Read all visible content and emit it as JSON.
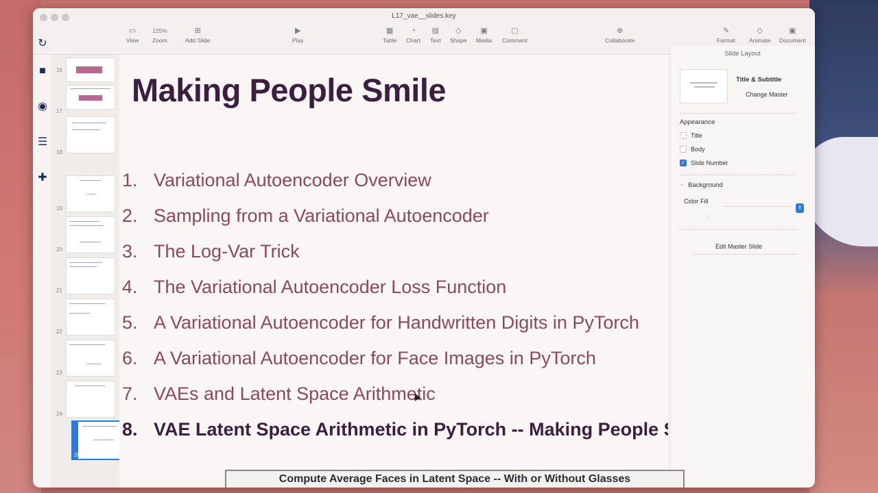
{
  "window": {
    "doc_title": "L17_vae__slides.key"
  },
  "toolbar": {
    "view": "View",
    "zoom_value": "125%",
    "zoom": "Zoom",
    "add_slide": "Add Slide",
    "play": "Play",
    "table": "Table",
    "chart": "Chart",
    "text": "Text",
    "shape": "Shape",
    "media": "Media",
    "comment": "Comment",
    "collaborate": "Collaborate",
    "format": "Format",
    "animate": "Animate",
    "document": "Document"
  },
  "navigator": {
    "slide_numbers": [
      "16",
      "17",
      "18",
      "19",
      "20",
      "21",
      "22",
      "23",
      "24",
      "26"
    ]
  },
  "slide": {
    "title": "Making People Smile",
    "items": [
      {
        "num": "1.",
        "text": "Variational Autoencoder Overview"
      },
      {
        "num": "2.",
        "text": "Sampling from a Variational Autoencoder"
      },
      {
        "num": "3.",
        "text": "The Log-Var Trick"
      },
      {
        "num": "4.",
        "text": "The Variational Autoencoder Loss Function"
      },
      {
        "num": "5.",
        "text": "A Variational Autoencoder for Handwritten Digits in PyTorch"
      },
      {
        "num": "6.",
        "text": "A Variational Autoencoder for Face Images in PyTorch"
      },
      {
        "num": "7.",
        "text": "VAEs and Latent Space Arithmetic"
      },
      {
        "num": "8.",
        "text": "VAE Latent Space Arithmetic in PyTorch -- Making People Smile"
      }
    ]
  },
  "inspector": {
    "header": "Slide Layout",
    "layout_name": "Title & Subtitle",
    "change_master": "Change Master",
    "appearance": "Appearance",
    "title_opt": "Title",
    "body_opt": "Body",
    "slide_number_opt": "Slide Number",
    "background": "Background",
    "color_fill": "Color Fill",
    "edit_master": "Edit Master Slide"
  },
  "notes": {
    "text": "Compute Average Faces in Latent Space -- With or Without Glasses"
  }
}
